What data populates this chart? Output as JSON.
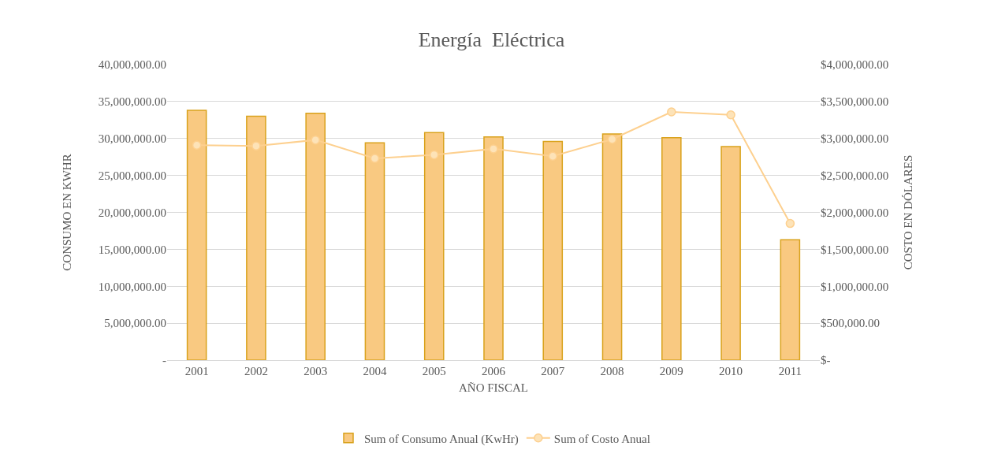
{
  "chart_data": {
    "type": "bar",
    "title": "Energía  Eléctrica",
    "xlabel": "AÑO FISCAL",
    "ylabel": "CONSUMO EN KWHR",
    "y2label": "COSTO EN DÓLARES",
    "categories": [
      "2001",
      "2002",
      "2003",
      "2004",
      "2005",
      "2006",
      "2007",
      "2008",
      "2009",
      "2010",
      "2011"
    ],
    "series": [
      {
        "name": "Sum of Consumo Anual (KwHr)",
        "color": "#f9c981",
        "values": [
          33800000,
          33000000,
          33400000,
          29400000,
          30800000,
          30200000,
          29600000,
          30600000,
          30100000,
          28900000,
          16300000
        ]
      },
      {
        "name": "Sum of Costo Anual",
        "type": "line",
        "axis": "y2",
        "color": "#fdd08f",
        "marker": "circle",
        "line_style": "solid",
        "values": [
          2910000,
          2900000,
          2980000,
          2730000,
          2780000,
          2860000,
          2760000,
          2990000,
          3360000,
          3320000,
          1850000
        ]
      }
    ],
    "ylim": [
      0,
      40000000
    ],
    "yticks": [
      {
        "value": 0,
        "label": "-"
      },
      {
        "value": 5000000,
        "label": "5,000,000.00"
      },
      {
        "value": 10000000,
        "label": "10,000,000.00"
      },
      {
        "value": 15000000,
        "label": "15,000,000.00"
      },
      {
        "value": 20000000,
        "label": "20,000,000.00"
      },
      {
        "value": 25000000,
        "label": "25,000,000.00"
      },
      {
        "value": 30000000,
        "label": "30,000,000.00"
      },
      {
        "value": 35000000,
        "label": "35,000,000.00"
      },
      {
        "value": 40000000,
        "label": "40,000,000.00"
      }
    ],
    "y2lim": [
      0,
      4000000
    ],
    "y2ticks": [
      {
        "value": 0,
        "label": "$-"
      },
      {
        "value": 500000,
        "label": "$500,000.00"
      },
      {
        "value": 1000000,
        "label": "$1,000,000.00"
      },
      {
        "value": 1500000,
        "label": "$1,500,000.00"
      },
      {
        "value": 2000000,
        "label": "$2,000,000.00"
      },
      {
        "value": 2500000,
        "label": "$2,500,000.00"
      },
      {
        "value": 3000000,
        "label": "$3,000,000.00"
      },
      {
        "value": 3500000,
        "label": "$3,500,000.00"
      },
      {
        "value": 4000000,
        "label": "$4,000,000.00"
      }
    ],
    "grid": "y",
    "legend": "bottom"
  }
}
